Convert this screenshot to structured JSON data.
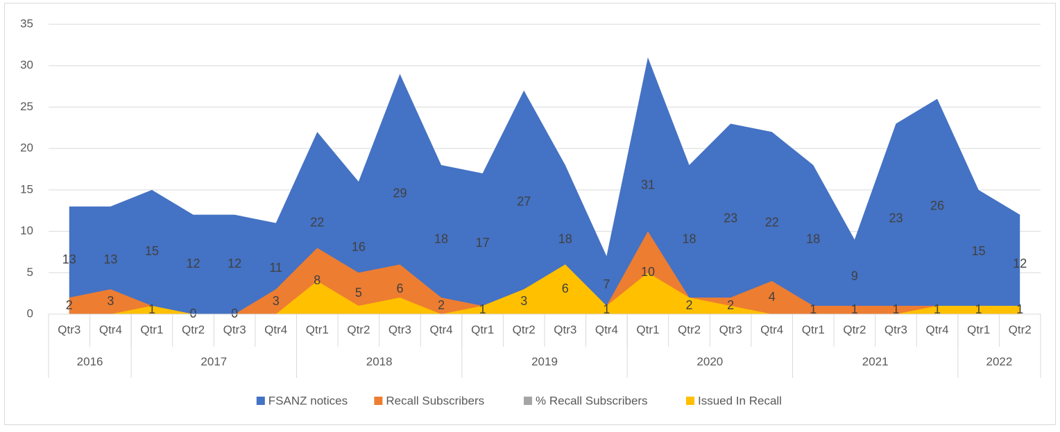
{
  "chart_data": {
    "type": "area",
    "categories": [
      "Qtr3",
      "Qtr4",
      "Qtr1",
      "Qtr2",
      "Qtr3",
      "Qtr4",
      "Qtr1",
      "Qtr2",
      "Qtr3",
      "Qtr4",
      "Qtr1",
      "Qtr2",
      "Qtr3",
      "Qtr4",
      "Qtr1",
      "Qtr2",
      "Qtr3",
      "Qtr4",
      "Qtr1",
      "Qtr2",
      "Qtr3",
      "Qtr4",
      "Qtr1",
      "Qtr2"
    ],
    "groups": [
      {
        "label": "2016",
        "span": 2
      },
      {
        "label": "2017",
        "span": 4
      },
      {
        "label": "2018",
        "span": 4
      },
      {
        "label": "2019",
        "span": 4
      },
      {
        "label": "2020",
        "span": 4
      },
      {
        "label": "2021",
        "span": 4
      },
      {
        "label": "2022",
        "span": 2
      }
    ],
    "series": [
      {
        "name": "FSANZ notices",
        "color": "#4472c4",
        "labels": true,
        "values": [
          13,
          13,
          15,
          12,
          12,
          11,
          22,
          16,
          29,
          18,
          17,
          27,
          18,
          7,
          31,
          18,
          23,
          22,
          18,
          9,
          23,
          26,
          15,
          12
        ]
      },
      {
        "name": "Recall Subscribers",
        "color": "#ed7d31",
        "labels": true,
        "values": [
          2,
          3,
          1,
          0,
          0,
          3,
          8,
          5,
          6,
          2,
          1,
          3,
          6,
          1,
          10,
          2,
          2,
          4,
          1,
          1,
          1,
          1,
          1,
          1
        ]
      },
      {
        "name": "% Recall Subscribers",
        "color": "#a5a5a5",
        "labels": false,
        "values": [
          0,
          0,
          0,
          0,
          0,
          0,
          0,
          0,
          0,
          0,
          0,
          0,
          0,
          0,
          0,
          0,
          0,
          0,
          0,
          0,
          0,
          0,
          0,
          0
        ]
      },
      {
        "name": "Issued In Recall",
        "color": "#ffc000",
        "labels": false,
        "values": [
          0,
          0,
          1,
          0,
          0,
          0,
          4,
          1,
          2,
          0,
          1,
          3,
          6,
          1,
          5,
          2,
          1,
          0,
          0,
          0,
          0,
          1,
          1,
          1
        ]
      }
    ],
    "ylim": [
      0,
      35
    ],
    "yticks": [
      0,
      5,
      10,
      15,
      20,
      25,
      30,
      35
    ],
    "grid": true,
    "legend": "bottom"
  }
}
